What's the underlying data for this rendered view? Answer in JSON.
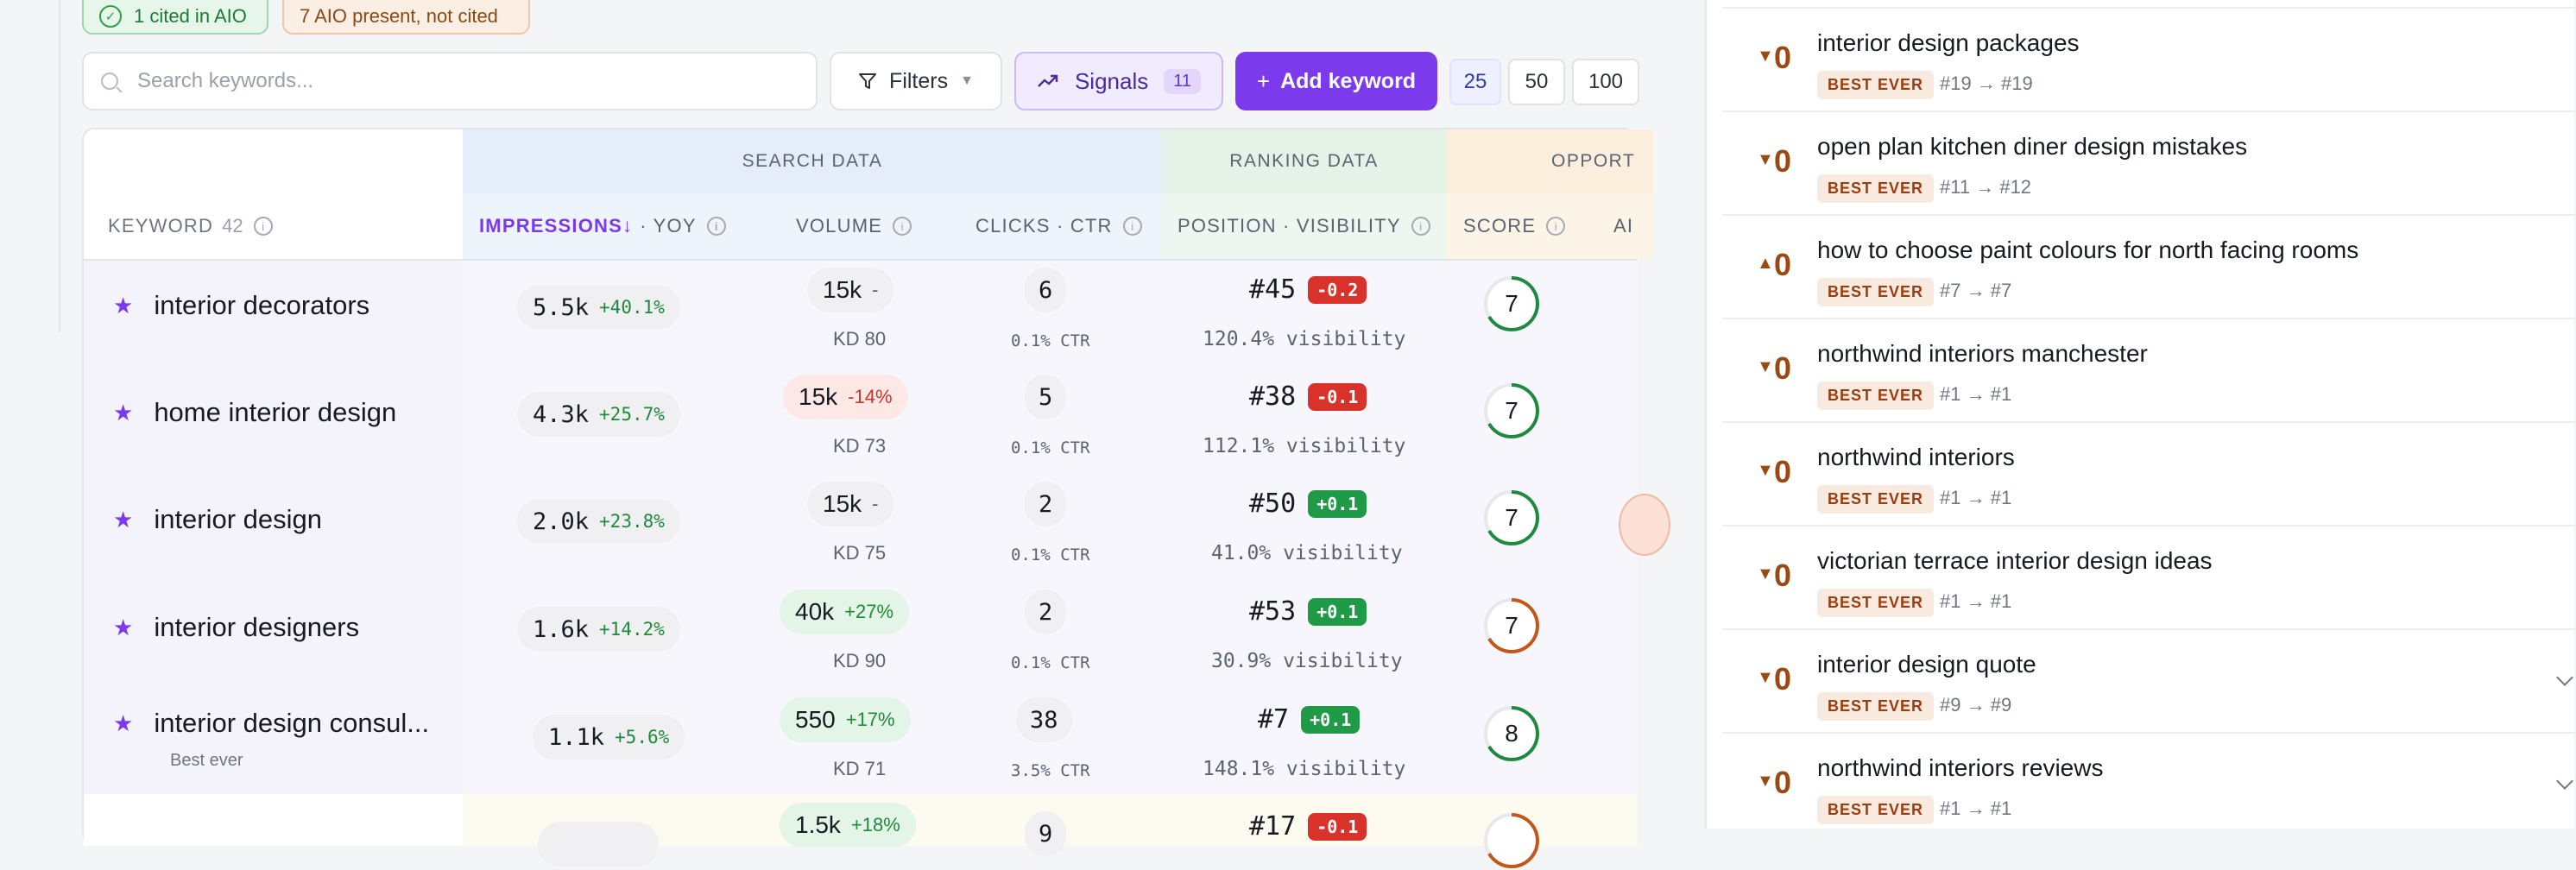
{
  "status_pills": {
    "cited": "1 cited in AIO",
    "not_cited": "7 AIO present, not cited"
  },
  "toolbar": {
    "search_placeholder": "Search keywords...",
    "filters_label": "Filters",
    "signals_label": "Signals",
    "signals_count": "11",
    "add_keyword_label": "Add keyword",
    "page_sizes": [
      "25",
      "50",
      "100"
    ],
    "page_size_selected": "25"
  },
  "table": {
    "groups": {
      "search": "SEARCH DATA",
      "ranking": "RANKING DATA",
      "opportunity": "OPPORT"
    },
    "columns": {
      "keyword": "KEYWORD",
      "keyword_count": "42",
      "impressions": "IMPRESSIONS",
      "impressions_sort": "↓",
      "yoy": "· YOY",
      "volume": "VOLUME",
      "clicks": "CLICKS · CTR",
      "position": "POSITION · VISIBILITY",
      "score": "SCORE",
      "ai": "AI"
    },
    "rows": [
      {
        "keyword": "interior decorators",
        "sub": "",
        "impressions": "5.5k",
        "yoy": "+40.1%",
        "volume": "15k",
        "volume_delta": "-",
        "kd": "KD 80",
        "clicks": "6",
        "ctr": "0.1% CTR",
        "position": "#45",
        "pos_delta": "-0.2",
        "visibility": "120.4% visibility",
        "score": "7",
        "score_color": "#1f8a3f"
      },
      {
        "keyword": "home interior design",
        "sub": "",
        "impressions": "4.3k",
        "yoy": "+25.7%",
        "volume": "15k",
        "volume_delta": "-14%",
        "kd": "KD 73",
        "clicks": "5",
        "ctr": "0.1% CTR",
        "position": "#38",
        "pos_delta": "-0.1",
        "visibility": "112.1% visibility",
        "score": "7",
        "score_color": "#1f8a3f"
      },
      {
        "keyword": "interior design",
        "sub": "",
        "impressions": "2.0k",
        "yoy": "+23.8%",
        "volume": "15k",
        "volume_delta": "-",
        "kd": "KD 75",
        "clicks": "2",
        "ctr": "0.1% CTR",
        "position": "#50",
        "pos_delta": "+0.1",
        "visibility": "41.0% visibility",
        "score": "7",
        "score_color": "#1f8a3f"
      },
      {
        "keyword": "interior designers",
        "sub": "",
        "impressions": "1.6k",
        "yoy": "+14.2%",
        "volume": "40k",
        "volume_delta": "+27%",
        "kd": "KD 90",
        "clicks": "2",
        "ctr": "0.1% CTR",
        "position": "#53",
        "pos_delta": "+0.1",
        "visibility": "30.9% visibility",
        "score": "7",
        "score_color": "#c2571a"
      },
      {
        "keyword": "interior design consul...",
        "sub": "Best ever",
        "impressions": "1.1k",
        "yoy": "+5.6%",
        "volume": "550",
        "volume_delta": "+17%",
        "kd": "KD 71",
        "clicks": "38",
        "ctr": "3.5% CTR",
        "position": "#7",
        "pos_delta": "+0.1",
        "visibility": "148.1% visibility",
        "score": "8",
        "score_color": "#1f8a3f"
      },
      {
        "keyword": "",
        "sub": "",
        "impressions": "",
        "yoy": "",
        "volume": "1.5k",
        "volume_delta": "+18%",
        "kd": "",
        "clicks": "9",
        "ctr": "",
        "position": "#17",
        "pos_delta": "-0.1",
        "visibility": "",
        "score": "",
        "score_color": "#c2571a"
      }
    ]
  },
  "panel": {
    "badge": "BEST EVER",
    "items": [
      {
        "arrow": "▼",
        "delta": "0",
        "title": "interior design packages",
        "from": "#19",
        "to": "#19",
        "expand": false
      },
      {
        "arrow": "▼",
        "delta": "0",
        "title": "open plan kitchen diner design mistakes",
        "from": "#11",
        "to": "#12",
        "expand": false
      },
      {
        "arrow": "▲",
        "delta": "0",
        "title": "how to choose paint colours for north facing rooms",
        "from": "#7",
        "to": "#7",
        "expand": false
      },
      {
        "arrow": "▼",
        "delta": "0",
        "title": "northwind interiors manchester",
        "from": "#1",
        "to": "#1",
        "expand": false
      },
      {
        "arrow": "▼",
        "delta": "0",
        "title": "northwind interiors",
        "from": "#1",
        "to": "#1",
        "expand": false
      },
      {
        "arrow": "▼",
        "delta": "0",
        "title": "victorian terrace interior design ideas",
        "from": "#1",
        "to": "#1",
        "expand": false
      },
      {
        "arrow": "▼",
        "delta": "0",
        "title": "interior design quote",
        "from": "#9",
        "to": "#9",
        "expand": true
      },
      {
        "arrow": "▼",
        "delta": "0",
        "title": "northwind interiors reviews",
        "from": "#1",
        "to": "#1",
        "expand": true
      }
    ],
    "arrow_sep": "→"
  },
  "icons": {
    "check": "check-circle-icon",
    "search": "search-icon",
    "filter": "filter-icon",
    "signals": "trend-up-icon",
    "plus": "plus-icon",
    "star": "star-icon",
    "info": "info-icon",
    "chevron": "chevron-down-icon"
  },
  "colors": {
    "accent": "#7c3aed",
    "positive": "#1f9a46",
    "negative": "#d9322b",
    "panel_accent": "#9a4a12"
  }
}
